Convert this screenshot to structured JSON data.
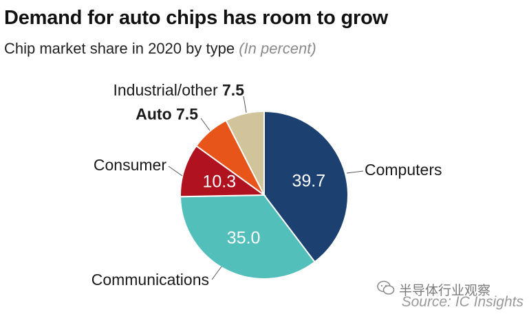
{
  "header": {
    "title": "Demand for auto chips has room to grow",
    "subtitle": "Chip market share in 2020 by type",
    "unit": "(In percent)"
  },
  "chart_data": {
    "type": "pie",
    "unit": "percent",
    "slices": [
      {
        "label": "Computers",
        "value": 39.7,
        "color": "#1c4170",
        "value_color": "#ffffff"
      },
      {
        "label": "Communications",
        "value": 35.0,
        "color": "#52bfbb",
        "value_color": "#ffffff"
      },
      {
        "label": "Consumer",
        "value": 10.3,
        "color": "#b0121f",
        "value_color": "#ffffff"
      },
      {
        "label": "Auto",
        "value": 7.5,
        "color": "#e8551b",
        "bold": true
      },
      {
        "label": "Industrial/other",
        "value": 7.5,
        "color": "#d1c39a"
      }
    ]
  },
  "watermark": "半导体行业观察",
  "source": "Source: IC Insights"
}
